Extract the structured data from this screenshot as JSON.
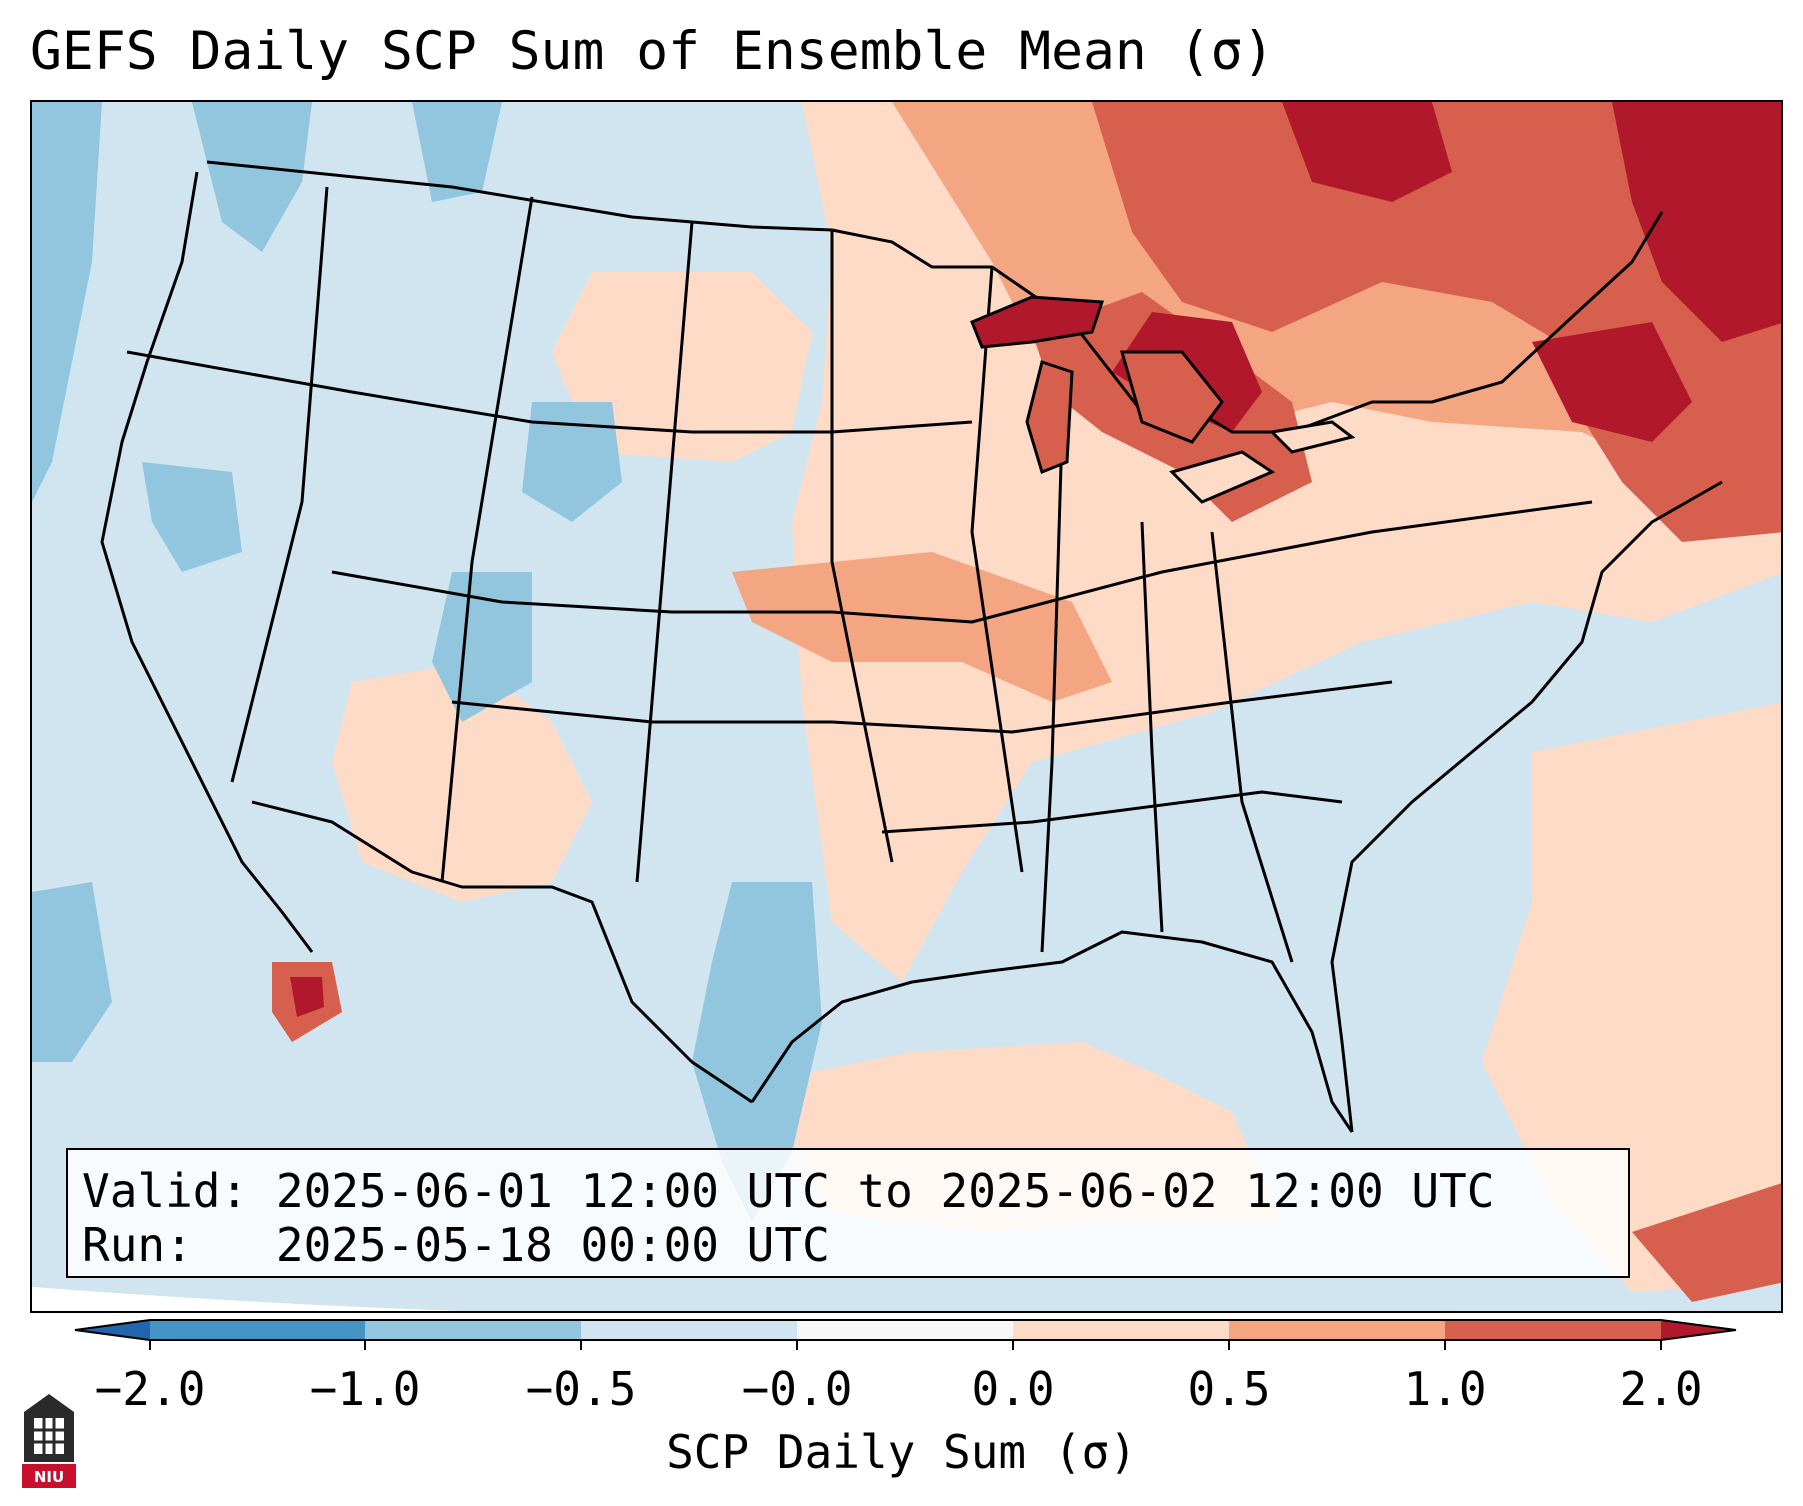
{
  "title": "GEFS Daily SCP Sum of Ensemble Mean (σ)",
  "info": {
    "valid_label": "Valid:",
    "valid_value": "2025-06-01 12:00 UTC to 2025-06-02 12:00 UTC",
    "run_label": "Run:",
    "run_value": "2025-05-18 00:00 UTC"
  },
  "colorbar": {
    "label": "SCP Daily Sum (σ)",
    "ticks": [
      "−2.0",
      "−1.0",
      "−0.5",
      "−0.0",
      "0.0",
      "0.5",
      "1.0",
      "2.0"
    ],
    "colors": [
      "#4393c3",
      "#92c5de",
      "#d1e5f0",
      "#f7f7f7",
      "#fddbc7",
      "#f4a582",
      "#d6604d"
    ],
    "extend_low_color": "#2166ac",
    "extend_high_color": "#b2182b"
  },
  "logo": {
    "text": "NIU",
    "icon": "university-logo-icon"
  },
  "map": {
    "region": "Contiguous United States",
    "field": "SCP daily sum anomaly",
    "colors": {
      "light_blue": "#d1e5f0",
      "mid_blue": "#92c5de",
      "light_red": "#fddbc7",
      "mid_red": "#f4a582",
      "red": "#d6604d",
      "dark_red": "#b2182b"
    }
  }
}
